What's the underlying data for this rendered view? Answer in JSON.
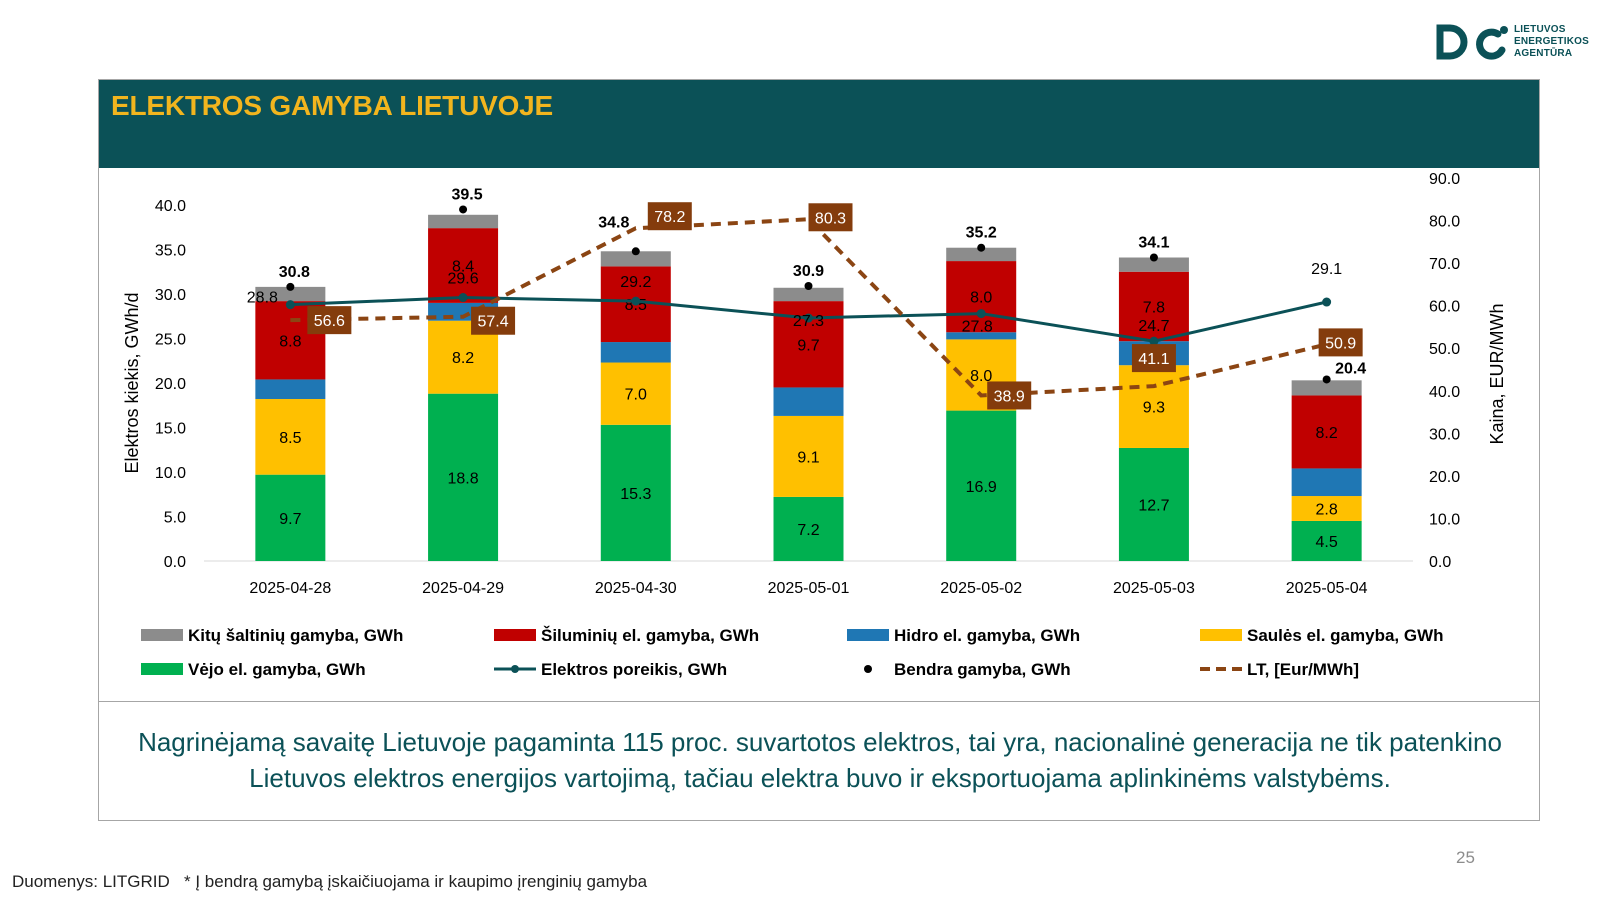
{
  "brand": {
    "logo_lines": [
      "LIETUVOS",
      "ENERGETIKOS",
      "AGENTŪRA"
    ],
    "colors": {
      "primary": "#0b5157",
      "accent": "#f2b51e"
    }
  },
  "header": {
    "title": "ELEKTROS GAMYBA LIETUVOJE"
  },
  "summary": "Nagrinėjamą savaitę Lietuvoje pagaminta 115 proc. suvartotos elektros, tai yra, nacionalinė generacija ne tik patenkino Lietuvos elektros energijos vartojimą, tačiau elektra buvo ir eksportuojama aplinkinėms valstybėms.",
  "footer": {
    "page_number": "25",
    "source": "Duomenys: LITGRID",
    "footnote": "* Į bendrą gamybą įskaičiuojama ir kaupimo įrenginių gamyba"
  },
  "chart_data": {
    "type": "bar",
    "stacked": true,
    "categories": [
      "2025-04-28",
      "2025-04-29",
      "2025-04-30",
      "2025-05-01",
      "2025-05-02",
      "2025-05-03",
      "2025-05-04"
    ],
    "ylabel": "Elektros kiekis, GWh/d",
    "ylim": [
      0,
      40
    ],
    "yticks": [
      "0.0",
      "5.0",
      "10.0",
      "15.0",
      "20.0",
      "25.0",
      "30.0",
      "35.0",
      "40.0"
    ],
    "y2label": "Kaina, EUR/MWh",
    "y2lim": [
      0,
      90
    ],
    "y2ticks": [
      "0.0",
      "10.0",
      "20.0",
      "30.0",
      "40.0",
      "50.0",
      "60.0",
      "70.0",
      "80.0",
      "90.0"
    ],
    "grid": false,
    "legend_position": "bottom",
    "series": [
      {
        "name": "Vėjo el. gamyba, GWh",
        "kind": "bar",
        "color": "#00b050",
        "values": [
          9.7,
          18.8,
          15.3,
          7.2,
          16.9,
          12.7,
          4.5
        ],
        "labels": [
          "9.7",
          "18.8",
          "15.3",
          "7.2",
          "16.9",
          "12.7",
          "4.5"
        ]
      },
      {
        "name": "Saulės el. gamyba, GWh",
        "kind": "bar",
        "color": "#ffc000",
        "values": [
          8.5,
          8.2,
          7.0,
          9.1,
          8.0,
          9.3,
          2.8
        ],
        "labels": [
          "8.5",
          "8.2",
          "7.0",
          "9.1",
          "8.0",
          "9.3",
          "2.8"
        ]
      },
      {
        "name": "Hidro el. gamyba, GWh",
        "kind": "bar",
        "color": "#1f77b4",
        "values": [
          2.2,
          2.0,
          2.3,
          3.2,
          0.8,
          2.7,
          3.1
        ],
        "labels": [
          "",
          "",
          "",
          "",
          "",
          "",
          ""
        ]
      },
      {
        "name": "Šiluminių el. gamyba, GWh",
        "kind": "bar",
        "color": "#c00000",
        "values": [
          8.8,
          8.4,
          8.5,
          9.7,
          8.0,
          7.8,
          8.2
        ],
        "labels": [
          "8.8",
          "8.4",
          "8.5",
          "9.7",
          "8.0",
          "7.8",
          "8.2"
        ]
      },
      {
        "name": "Kitų šaltinių gamyba,  GWh",
        "kind": "bar",
        "color": "#8c8c8c",
        "values": [
          1.6,
          1.5,
          1.7,
          1.5,
          1.5,
          1.6,
          1.7
        ],
        "labels": [
          "",
          "",
          "",
          "",
          "",
          "",
          ""
        ]
      },
      {
        "name": "Elektros poreikis, GWh",
        "kind": "line",
        "color": "#0b5157",
        "values": [
          28.8,
          29.6,
          29.2,
          27.3,
          27.8,
          24.7,
          29.1
        ],
        "labels": [
          "28.8",
          "29.6",
          "29.2",
          "27.3",
          "27.8",
          "24.7",
          "29.1"
        ]
      },
      {
        "name": "Bendra gamyba, GWh",
        "kind": "point",
        "color": "#000000",
        "values": [
          30.8,
          39.5,
          34.8,
          30.9,
          35.2,
          34.1,
          20.4
        ],
        "labels": [
          "30.8",
          "39.5",
          "34.8",
          "30.9",
          "35.2",
          "34.1",
          "20.4"
        ]
      },
      {
        "name": "LT, [Eur/MWh]",
        "kind": "line",
        "axis": "right",
        "dashed": true,
        "color": "#8b4513",
        "values": [
          56.6,
          57.4,
          78.2,
          80.3,
          38.9,
          41.1,
          50.9
        ],
        "labels": [
          "56.6",
          "57.4",
          "78.2",
          "80.3",
          "38.9",
          "41.1",
          "50.9"
        ]
      }
    ],
    "legend_order": [
      "Kitų šaltinių gamyba,  GWh",
      "Šiluminių el. gamyba, GWh",
      "Hidro el. gamyba, GWh",
      "Saulės el. gamyba, GWh",
      "Vėjo el. gamyba, GWh",
      "Elektros poreikis, GWh",
      "Bendra gamyba, GWh",
      "LT, [Eur/MWh]"
    ]
  }
}
